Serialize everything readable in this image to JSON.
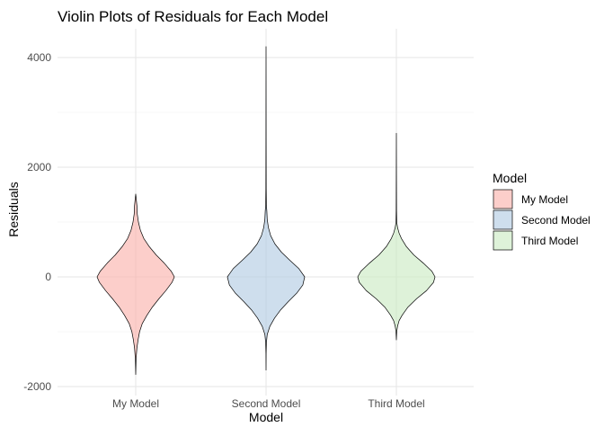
{
  "chart_data": {
    "type": "violin",
    "title": "Violin Plots of Residuals for Each Model",
    "xlabel": "Model",
    "ylabel": "Residuals",
    "ylim": [
      -2100,
      4400
    ],
    "yticks": [
      -2000,
      0,
      2000,
      4000
    ],
    "ytick_labels": [
      "-2000",
      "0",
      "2000",
      "4000"
    ],
    "categories": [
      "My Model",
      "Second Model",
      "Third Model"
    ],
    "grid": true,
    "legend": {
      "title": "Model",
      "position": "right"
    },
    "series": [
      {
        "name": "My Model",
        "color": "#FBB4AE",
        "min": -1780,
        "max": 1510,
        "profile": [
          [
            -1780,
            0.0
          ],
          [
            -1500,
            0.01
          ],
          [
            -1300,
            0.03
          ],
          [
            -1150,
            0.06
          ],
          [
            -1000,
            0.1
          ],
          [
            -850,
            0.17
          ],
          [
            -700,
            0.29
          ],
          [
            -550,
            0.43
          ],
          [
            -400,
            0.6
          ],
          [
            -250,
            0.78
          ],
          [
            -100,
            0.94
          ],
          [
            0,
            1.0
          ],
          [
            100,
            0.92
          ],
          [
            250,
            0.74
          ],
          [
            400,
            0.53
          ],
          [
            550,
            0.35
          ],
          [
            700,
            0.21
          ],
          [
            850,
            0.12
          ],
          [
            1000,
            0.07
          ],
          [
            1150,
            0.04
          ],
          [
            1300,
            0.03
          ],
          [
            1420,
            0.015
          ],
          [
            1510,
            0.0
          ]
        ]
      },
      {
        "name": "Second Model",
        "color": "#B3CDE3",
        "min": -1700,
        "max": 4200,
        "profile": [
          [
            -1700,
            0.0
          ],
          [
            -1400,
            0.003
          ],
          [
            -1200,
            0.01
          ],
          [
            -1050,
            0.03
          ],
          [
            -900,
            0.1
          ],
          [
            -750,
            0.22
          ],
          [
            -600,
            0.38
          ],
          [
            -450,
            0.58
          ],
          [
            -300,
            0.79
          ],
          [
            -150,
            0.95
          ],
          [
            0,
            1.0
          ],
          [
            150,
            0.85
          ],
          [
            300,
            0.62
          ],
          [
            450,
            0.4
          ],
          [
            600,
            0.23
          ],
          [
            750,
            0.12
          ],
          [
            900,
            0.06
          ],
          [
            1050,
            0.03
          ],
          [
            1200,
            0.02
          ],
          [
            1300,
            0.01
          ],
          [
            1600,
            0.004
          ],
          [
            2500,
            0.002
          ],
          [
            4200,
            0.0
          ]
        ]
      },
      {
        "name": "Third Model",
        "color": "#CCEBC5",
        "min": -1150,
        "max": 2620,
        "profile": [
          [
            -1150,
            0.0
          ],
          [
            -1000,
            0.01
          ],
          [
            -900,
            0.03
          ],
          [
            -800,
            0.07
          ],
          [
            -700,
            0.15
          ],
          [
            -550,
            0.3
          ],
          [
            -400,
            0.52
          ],
          [
            -250,
            0.78
          ],
          [
            -100,
            0.96
          ],
          [
            0,
            1.0
          ],
          [
            100,
            0.92
          ],
          [
            250,
            0.7
          ],
          [
            400,
            0.45
          ],
          [
            550,
            0.26
          ],
          [
            700,
            0.13
          ],
          [
            800,
            0.07
          ],
          [
            900,
            0.03
          ],
          [
            1000,
            0.01
          ],
          [
            1200,
            0.005
          ],
          [
            1800,
            0.003
          ],
          [
            2620,
            0.0
          ]
        ]
      }
    ]
  }
}
